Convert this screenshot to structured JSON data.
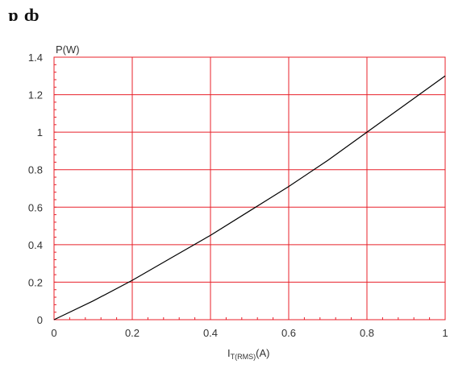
{
  "header": {
    "title": "ɒ ȸ"
  },
  "chart_data": {
    "type": "line",
    "title": "",
    "xlabel": "I",
    "xlabel_subscript": "T(RMS)",
    "xlabel_suffix": "(A)",
    "ylabel": "P(W)",
    "xlim": [
      0,
      1
    ],
    "ylim": [
      0,
      1.4
    ],
    "x_ticks": [
      0,
      0.2,
      0.4,
      0.6,
      0.8,
      1
    ],
    "y_ticks": [
      0,
      0.2,
      0.4,
      0.6,
      0.8,
      1,
      1.2,
      1.4
    ],
    "x_tick_labels": [
      "0",
      "0.2",
      "0.4",
      "0.6",
      "0.8",
      "1"
    ],
    "y_tick_labels": [
      "0",
      "0.2",
      "0.4",
      "0.6",
      "0.8",
      "1",
      "1.2",
      "1.4"
    ],
    "grid": true,
    "colors": {
      "grid": "#e8202a",
      "line": "#000000",
      "axis": "#e8202a"
    },
    "series": [
      {
        "x": [
          0,
          0.1,
          0.2,
          0.3,
          0.4,
          0.5,
          0.6,
          0.7,
          0.8,
          0.9,
          1.0
        ],
        "values": [
          0,
          0.1,
          0.21,
          0.33,
          0.45,
          0.58,
          0.71,
          0.85,
          1.0,
          1.15,
          1.3
        ]
      }
    ]
  }
}
